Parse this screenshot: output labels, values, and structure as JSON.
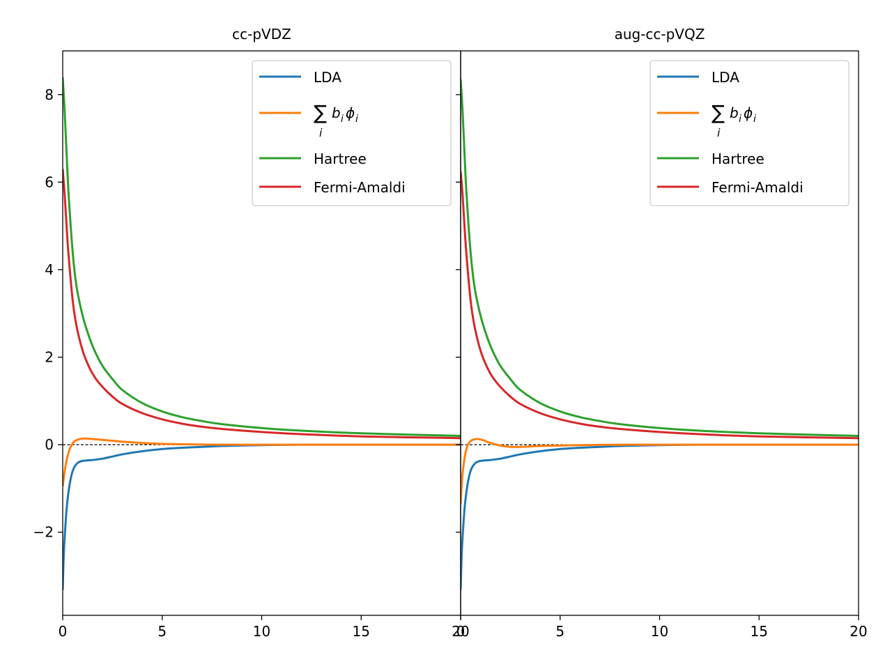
{
  "chart_data": [
    {
      "type": "line",
      "title": "cc-pVDZ",
      "xlabel": "",
      "ylabel": "",
      "xlim": [
        0,
        20
      ],
      "ylim": [
        -3.9,
        9.0
      ],
      "xticks": [
        0,
        5,
        10,
        15,
        20
      ],
      "xtick_labels": [
        "0",
        "5",
        "10",
        "15",
        "20"
      ],
      "yticks": [
        -2,
        0,
        2,
        4,
        6,
        8
      ],
      "ytick_labels": [
        "−2",
        "0",
        "2",
        "4",
        "6",
        "8"
      ],
      "grid": false,
      "legend_position": "upper right",
      "reference_line": {
        "y": 0,
        "style": "dashed",
        "color": "#000000"
      },
      "series": [
        {
          "name": "LDA",
          "color": "#1f77b4",
          "x": [
            0,
            0.05,
            0.1,
            0.2,
            0.3,
            0.4,
            0.5,
            0.6,
            0.7,
            0.8,
            1.0,
            1.2,
            1.5,
            2,
            2.5,
            3,
            4,
            5,
            6,
            7,
            8,
            10,
            12,
            15,
            20
          ],
          "y": [
            -3.32,
            -2.55,
            -2.1,
            -1.45,
            -1.05,
            -0.78,
            -0.6,
            -0.5,
            -0.44,
            -0.4,
            -0.37,
            -0.36,
            -0.35,
            -0.32,
            -0.27,
            -0.22,
            -0.15,
            -0.1,
            -0.07,
            -0.05,
            -0.03,
            -0.01,
            0,
            0,
            0
          ]
        },
        {
          "name": "∑_i b_i ϕ_i",
          "color": "#ff7f0e",
          "x": [
            0,
            0.1,
            0.2,
            0.3,
            0.4,
            0.5,
            0.6,
            0.8,
            1.0,
            1.2,
            1.5,
            2,
            2.5,
            3,
            4,
            5,
            6,
            8,
            10,
            15,
            20
          ],
          "y": [
            -0.95,
            -0.6,
            -0.35,
            -0.17,
            -0.05,
            0.03,
            0.08,
            0.12,
            0.14,
            0.14,
            0.13,
            0.11,
            0.09,
            0.07,
            0.04,
            0.02,
            0.01,
            0,
            0,
            0,
            0
          ]
        },
        {
          "name": "Hartree",
          "color": "#2ca02c",
          "x": [
            0,
            0.1,
            0.2,
            0.3,
            0.5,
            0.7,
            1.0,
            1.3,
            1.6,
            2,
            2.5,
            3,
            4,
            5,
            6,
            7,
            8,
            10,
            12,
            15,
            20
          ],
          "y": [
            8.4,
            7.6,
            6.6,
            5.7,
            4.4,
            3.6,
            2.95,
            2.5,
            2.15,
            1.8,
            1.5,
            1.25,
            0.95,
            0.76,
            0.63,
            0.54,
            0.47,
            0.38,
            0.32,
            0.26,
            0.2
          ]
        },
        {
          "name": "Fermi-Amaldi",
          "color": "#d62728",
          "x": [
            0,
            0.1,
            0.2,
            0.3,
            0.5,
            0.7,
            1.0,
            1.3,
            1.6,
            2,
            2.5,
            3,
            4,
            5,
            6,
            7,
            8,
            10,
            12,
            15,
            20
          ],
          "y": [
            6.3,
            5.7,
            4.95,
            4.3,
            3.3,
            2.7,
            2.15,
            1.8,
            1.55,
            1.32,
            1.1,
            0.93,
            0.72,
            0.58,
            0.48,
            0.41,
            0.36,
            0.29,
            0.24,
            0.19,
            0.15
          ]
        }
      ]
    },
    {
      "type": "line",
      "title": "aug-cc-pVQZ",
      "xlabel": "",
      "ylabel": "",
      "xlim": [
        0,
        20
      ],
      "ylim": [
        -3.9,
        9.0
      ],
      "xticks": [
        0,
        5,
        10,
        15,
        20
      ],
      "xtick_labels": [
        "0",
        "5",
        "10",
        "15",
        "20"
      ],
      "grid": false,
      "legend_position": "upper right",
      "reference_line": {
        "y": 0,
        "style": "dashed",
        "color": "#000000"
      },
      "series": [
        {
          "name": "LDA",
          "color": "#1f77b4",
          "x": [
            0,
            0.05,
            0.1,
            0.2,
            0.3,
            0.4,
            0.5,
            0.6,
            0.7,
            0.8,
            1.0,
            1.2,
            1.5,
            2,
            2.5,
            3,
            4,
            5,
            6,
            7,
            8,
            10,
            12,
            15,
            20
          ],
          "y": [
            -3.32,
            -2.55,
            -2.1,
            -1.45,
            -1.05,
            -0.78,
            -0.6,
            -0.5,
            -0.44,
            -0.4,
            -0.37,
            -0.36,
            -0.35,
            -0.32,
            -0.27,
            -0.22,
            -0.15,
            -0.1,
            -0.07,
            -0.05,
            -0.03,
            -0.01,
            0,
            0,
            0
          ]
        },
        {
          "name": "∑_i b_i ϕ_i",
          "color": "#ff7f0e",
          "x": [
            0,
            0.05,
            0.1,
            0.2,
            0.3,
            0.4,
            0.5,
            0.6,
            0.8,
            1.0,
            1.2,
            1.5,
            2,
            2.5,
            3,
            3.5,
            4,
            5,
            6,
            8,
            10,
            15,
            20
          ],
          "y": [
            -1.35,
            -0.95,
            -0.65,
            -0.3,
            -0.08,
            0.03,
            0.08,
            0.11,
            0.13,
            0.12,
            0.09,
            0.04,
            -0.02,
            -0.05,
            -0.05,
            -0.04,
            -0.03,
            -0.02,
            -0.01,
            0,
            0,
            0,
            0
          ]
        },
        {
          "name": "Hartree",
          "color": "#2ca02c",
          "x": [
            0,
            0.1,
            0.2,
            0.3,
            0.5,
            0.7,
            1.0,
            1.3,
            1.6,
            2,
            2.5,
            3,
            4,
            5,
            6,
            7,
            8,
            10,
            12,
            15,
            20
          ],
          "y": [
            8.35,
            7.6,
            6.6,
            5.7,
            4.4,
            3.6,
            2.95,
            2.5,
            2.15,
            1.8,
            1.5,
            1.25,
            0.95,
            0.76,
            0.63,
            0.54,
            0.47,
            0.38,
            0.32,
            0.26,
            0.2
          ]
        },
        {
          "name": "Fermi-Amaldi",
          "color": "#d62728",
          "x": [
            0,
            0.1,
            0.2,
            0.3,
            0.5,
            0.7,
            1.0,
            1.3,
            1.6,
            2,
            2.5,
            3,
            4,
            5,
            6,
            7,
            8,
            10,
            12,
            15,
            20
          ],
          "y": [
            6.25,
            5.7,
            4.95,
            4.3,
            3.3,
            2.7,
            2.15,
            1.8,
            1.55,
            1.32,
            1.1,
            0.93,
            0.72,
            0.58,
            0.48,
            0.41,
            0.36,
            0.29,
            0.24,
            0.19,
            0.15
          ]
        }
      ]
    }
  ]
}
